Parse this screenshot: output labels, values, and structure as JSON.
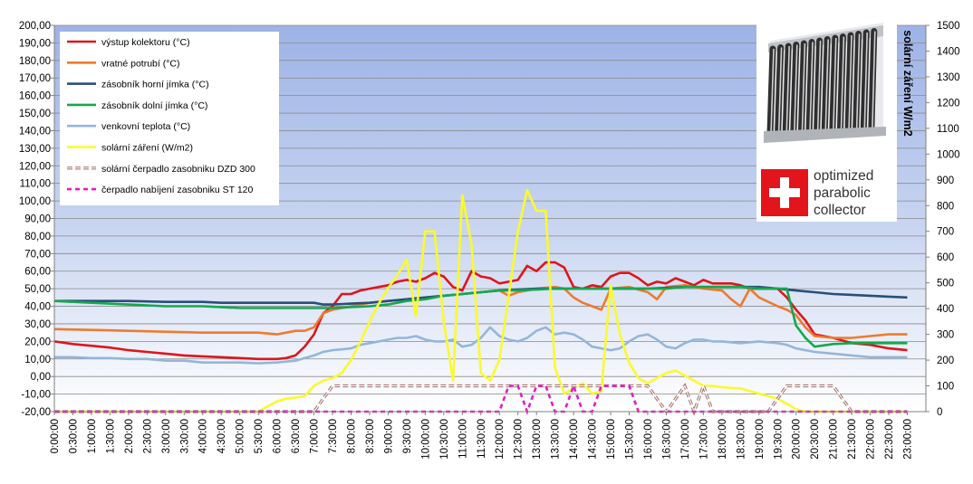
{
  "chart_data": {
    "type": "line",
    "title": "",
    "xlabel": "",
    "ylabel": "",
    "y2label": "solární záření W/m2",
    "ylim": [
      -20,
      200
    ],
    "y2lim": [
      0,
      1500
    ],
    "yticks": [
      "200,00",
      "190,00",
      "180,00",
      "170,00",
      "160,00",
      "150,00",
      "140,00",
      "130,00",
      "120,00",
      "110,00",
      "100,00",
      "90,00",
      "80,00",
      "70,00",
      "60,00",
      "50,00",
      "40,00",
      "30,00",
      "20,00",
      "10,00",
      "0,00",
      "-10,00",
      "-20,00"
    ],
    "y2ticks": [
      "1500",
      "1400",
      "1300",
      "1200",
      "1100",
      "1000",
      "900",
      "800",
      "700",
      "600",
      "500",
      "400",
      "300",
      "200",
      "100",
      "0"
    ],
    "grid": true,
    "legend_position": "top-left",
    "xticks": [
      "0:00:00",
      "0:30:00",
      "1:00:00",
      "1:30:00",
      "2:00:00",
      "2:30:00",
      "3:00:00",
      "3:30:00",
      "4:00:00",
      "4:30:00",
      "5:00:00",
      "5:30:00",
      "6:00:00",
      "6:30:00",
      "7:00:00",
      "7:30:00",
      "8:00:00",
      "8:30:00",
      "9:00:00",
      "9:30:00",
      "10:00:00",
      "10:30:00",
      "11:00:00",
      "11:30:00",
      "12:00:00",
      "12:30:00",
      "13:00:00",
      "13:30:00",
      "14:00:00",
      "14:30:00",
      "15:00:00",
      "15:30:00",
      "16:00:00",
      "16:30:00",
      "17:00:00",
      "17:30:00",
      "18:00:00",
      "18:30:00",
      "19:00:00",
      "19:30:00",
      "20:00:00",
      "20:30:00",
      "21:00:00",
      "21:30:00",
      "22:00:00",
      "22:30:00",
      "23:00:00"
    ],
    "series": [
      {
        "name": "výstup kolektoru (°C)",
        "color": "#e0151b",
        "axis": "left",
        "style": "solid",
        "x": [
          0,
          0.5,
          1,
          1.5,
          2,
          2.5,
          3,
          3.5,
          4,
          4.5,
          5,
          5.5,
          6,
          6.25,
          6.5,
          6.75,
          7,
          7.25,
          7.5,
          7.75,
          8,
          8.25,
          8.5,
          8.75,
          9,
          9.25,
          9.5,
          9.75,
          10,
          10.25,
          10.5,
          10.75,
          11,
          11.25,
          11.5,
          11.75,
          12,
          12.25,
          12.5,
          12.75,
          13,
          13.25,
          13.5,
          13.75,
          14,
          14.25,
          14.5,
          14.75,
          15,
          15.25,
          15.5,
          15.75,
          16,
          16.25,
          16.5,
          16.75,
          17,
          17.25,
          17.5,
          17.75,
          18,
          18.25,
          18.5,
          18.75,
          19,
          19.25,
          19.5,
          19.75,
          20,
          20.25,
          20.5,
          21,
          21.5,
          22,
          22.5,
          23
        ],
        "y": [
          20,
          18.5,
          17.5,
          16.5,
          15,
          14,
          13,
          12,
          11.5,
          11,
          10.5,
          10,
          10,
          10.5,
          12,
          17,
          24,
          36,
          40,
          47,
          47,
          49,
          50,
          51,
          52,
          54,
          55,
          54,
          56,
          59,
          57,
          51,
          49,
          60,
          57,
          56,
          53,
          54,
          55,
          63,
          60,
          65,
          65,
          62,
          51,
          50,
          52,
          51,
          57,
          59,
          59,
          56,
          52,
          54,
          53,
          56,
          54,
          52,
          55,
          53,
          53,
          53,
          52,
          50,
          50,
          50,
          50,
          45,
          38,
          32,
          24,
          22,
          19,
          18,
          16,
          15
        ]
      },
      {
        "name": "vratné potrubí (°C)",
        "color": "#ee7a2e",
        "axis": "left",
        "style": "solid",
        "x": [
          0,
          1,
          2,
          3,
          4,
          5,
          5.5,
          6,
          6.25,
          6.5,
          6.75,
          7,
          7.25,
          7.5,
          8,
          8.5,
          9,
          9.5,
          10,
          10.5,
          11,
          11.5,
          12,
          12.25,
          12.5,
          12.75,
          13,
          13.5,
          13.75,
          14,
          14.25,
          14.5,
          14.75,
          15,
          15.5,
          16,
          16.25,
          16.5,
          17,
          17.5,
          18,
          18.25,
          18.5,
          18.75,
          19,
          19.5,
          19.75,
          20,
          20.25,
          20.5,
          21,
          21.5,
          22,
          22.5,
          23
        ],
        "y": [
          27,
          26.5,
          26,
          25.5,
          25,
          25,
          25,
          24,
          25,
          26,
          26,
          28,
          36,
          38,
          40,
          42,
          43,
          44,
          45,
          46,
          47,
          48,
          49,
          46,
          48,
          49,
          50,
          51,
          50,
          45,
          42,
          40,
          38,
          50,
          51,
          48,
          44,
          51,
          52,
          50,
          49,
          44,
          40,
          50,
          45,
          40,
          38,
          35,
          28,
          23,
          22,
          22,
          23,
          24,
          24
        ]
      },
      {
        "name": "zásobník horní jímka (°C)",
        "color": "#284f7a",
        "axis": "left",
        "style": "solid",
        "x": [
          0,
          1,
          2,
          3,
          4,
          4.5,
          5,
          6,
          7,
          7.25,
          7.5,
          8,
          8.5,
          9,
          9.5,
          10,
          10.5,
          11,
          11.5,
          12,
          12.5,
          13,
          13.5,
          14,
          14.5,
          15,
          15.5,
          16,
          16.5,
          17,
          17.5,
          18,
          18.5,
          19,
          19.5,
          20,
          20.5,
          21,
          21.5,
          22,
          22.5,
          23
        ],
        "y": [
          43,
          43,
          43,
          42.5,
          42.5,
          42,
          42,
          42,
          42,
          41,
          41,
          41.5,
          42,
          43,
          44,
          45,
          46,
          47,
          48,
          49,
          49.5,
          50,
          50,
          50,
          50,
          50,
          50,
          50,
          50.5,
          51,
          51,
          51,
          51,
          51,
          50,
          49,
          48,
          47,
          46.5,
          46,
          45.5,
          45
        ]
      },
      {
        "name": "zásobník dolní jímka (°C)",
        "color": "#14a84e",
        "axis": "left",
        "style": "solid",
        "x": [
          0,
          1,
          2,
          3,
          4,
          5,
          6,
          7,
          7.5,
          8,
          8.5,
          9,
          9.5,
          10,
          10.5,
          11,
          11.5,
          12,
          12.5,
          13,
          13.5,
          14,
          14.5,
          15,
          15.5,
          16,
          16.5,
          17,
          17.5,
          18,
          18.5,
          19,
          19.5,
          19.75,
          20,
          20.25,
          20.5,
          21,
          21.5,
          22,
          22.5,
          23
        ],
        "y": [
          43,
          42,
          41,
          40,
          40,
          39,
          39,
          39,
          39,
          39.5,
          40,
          41,
          43,
          44,
          46,
          47,
          48,
          49,
          49,
          49.5,
          50,
          50,
          50,
          50,
          50,
          50,
          50,
          51,
          51,
          51,
          51,
          50,
          50,
          50,
          29,
          22,
          17,
          18.5,
          19,
          19,
          19,
          19
        ]
      },
      {
        "name": "venkovní teplota (°C)",
        "color": "#94b6d9",
        "axis": "left",
        "style": "solid",
        "x": [
          0,
          0.5,
          1,
          1.5,
          2,
          2.5,
          3,
          3.5,
          4,
          4.5,
          5,
          5.5,
          6,
          6.5,
          7,
          7.25,
          7.5,
          8,
          8.25,
          8.5,
          8.75,
          9,
          9.25,
          9.5,
          9.75,
          10,
          10.25,
          10.5,
          10.75,
          11,
          11.25,
          11.5,
          11.75,
          12,
          12.25,
          12.5,
          12.75,
          13,
          13.25,
          13.5,
          13.75,
          14,
          14.25,
          14.5,
          14.75,
          15,
          15.25,
          15.5,
          15.75,
          16,
          16.25,
          16.5,
          16.75,
          17,
          17.25,
          17.5,
          17.75,
          18,
          18.5,
          19,
          19.5,
          19.75,
          20,
          20.5,
          21,
          21.5,
          22,
          22.5,
          23
        ],
        "y": [
          11,
          11,
          10.5,
          10.5,
          10,
          10,
          9,
          9,
          8,
          8,
          8,
          7.5,
          8,
          9,
          12,
          14,
          15,
          16,
          18,
          19,
          20,
          21,
          22,
          22,
          23,
          21,
          20,
          20,
          21,
          17,
          18,
          22,
          28,
          23,
          21,
          20,
          22,
          26,
          28,
          24,
          25,
          24,
          21,
          17,
          16,
          15,
          16,
          20,
          23,
          24,
          21,
          17,
          16,
          19,
          21,
          21,
          20,
          20,
          19,
          20,
          19,
          18,
          16,
          14,
          13,
          12,
          11,
          11,
          11
        ]
      },
      {
        "name": "solární záření (W/m2)",
        "color": "#fafa2d",
        "axis": "right",
        "style": "solid",
        "x": [
          0,
          5.5,
          5.75,
          6,
          6.25,
          6.5,
          6.75,
          7,
          7.25,
          7.5,
          7.75,
          8,
          8.25,
          8.5,
          8.75,
          9,
          9.25,
          9.5,
          9.75,
          10,
          10.25,
          10.5,
          10.75,
          11,
          11.25,
          11.5,
          11.75,
          12,
          12.25,
          12.5,
          12.75,
          13,
          13.25,
          13.5,
          13.75,
          14,
          14.25,
          14.5,
          14.75,
          15,
          15.25,
          15.5,
          15.75,
          16,
          16.25,
          16.5,
          16.75,
          17,
          17.25,
          17.5,
          17.75,
          18,
          18.5,
          19,
          19.5,
          19.75,
          20,
          20.25,
          20.5,
          21,
          21.5,
          22,
          22.5,
          23
        ],
        "y": [
          0,
          0,
          20,
          40,
          50,
          55,
          60,
          100,
          120,
          130,
          150,
          200,
          270,
          350,
          420,
          480,
          530,
          590,
          370,
          700,
          700,
          350,
          120,
          840,
          650,
          150,
          120,
          200,
          450,
          700,
          860,
          780,
          780,
          170,
          70,
          90,
          110,
          70,
          80,
          490,
          300,
          190,
          130,
          110,
          130,
          150,
          160,
          140,
          120,
          100,
          100,
          95,
          90,
          70,
          50,
          30,
          10,
          0,
          0,
          0,
          0,
          0,
          0,
          0
        ]
      },
      {
        "name": "solární čerpadlo zasobniku DZD 300",
        "color": "#a06a62",
        "axis": "right",
        "style": "double-dash",
        "x": [
          0,
          6.75,
          7,
          7.25,
          7.5,
          12,
          12.5,
          15,
          15.25,
          16,
          16.25,
          16.5,
          16.75,
          17,
          17.25,
          17.5,
          17.75,
          18,
          19,
          19.25,
          19.5,
          19.75,
          20,
          20.5,
          21,
          21.25,
          21.5,
          23
        ],
        "y": [
          0,
          0,
          0,
          50,
          100,
          100,
          100,
          100,
          100,
          100,
          50,
          0,
          50,
          100,
          0,
          100,
          0,
          0,
          0,
          0,
          50,
          100,
          100,
          100,
          100,
          50,
          0,
          0
        ]
      },
      {
        "name": "čerpadlo nabíjení  zasobniku ST 120",
        "color": "#e01fc4",
        "axis": "right",
        "style": "dashed",
        "x": [
          0,
          11.75,
          12,
          12.25,
          12.5,
          12.75,
          13,
          13.25,
          13.5,
          13.75,
          14,
          14.25,
          14.5,
          14.75,
          15,
          15.5,
          15.75,
          16,
          23
        ],
        "y": [
          0,
          0,
          0,
          100,
          100,
          0,
          100,
          100,
          0,
          0,
          100,
          0,
          0,
          100,
          100,
          100,
          0,
          0,
          0
        ]
      }
    ]
  },
  "logo": {
    "line1": "optimized",
    "line2": "parabolic",
    "line3": "collector"
  }
}
